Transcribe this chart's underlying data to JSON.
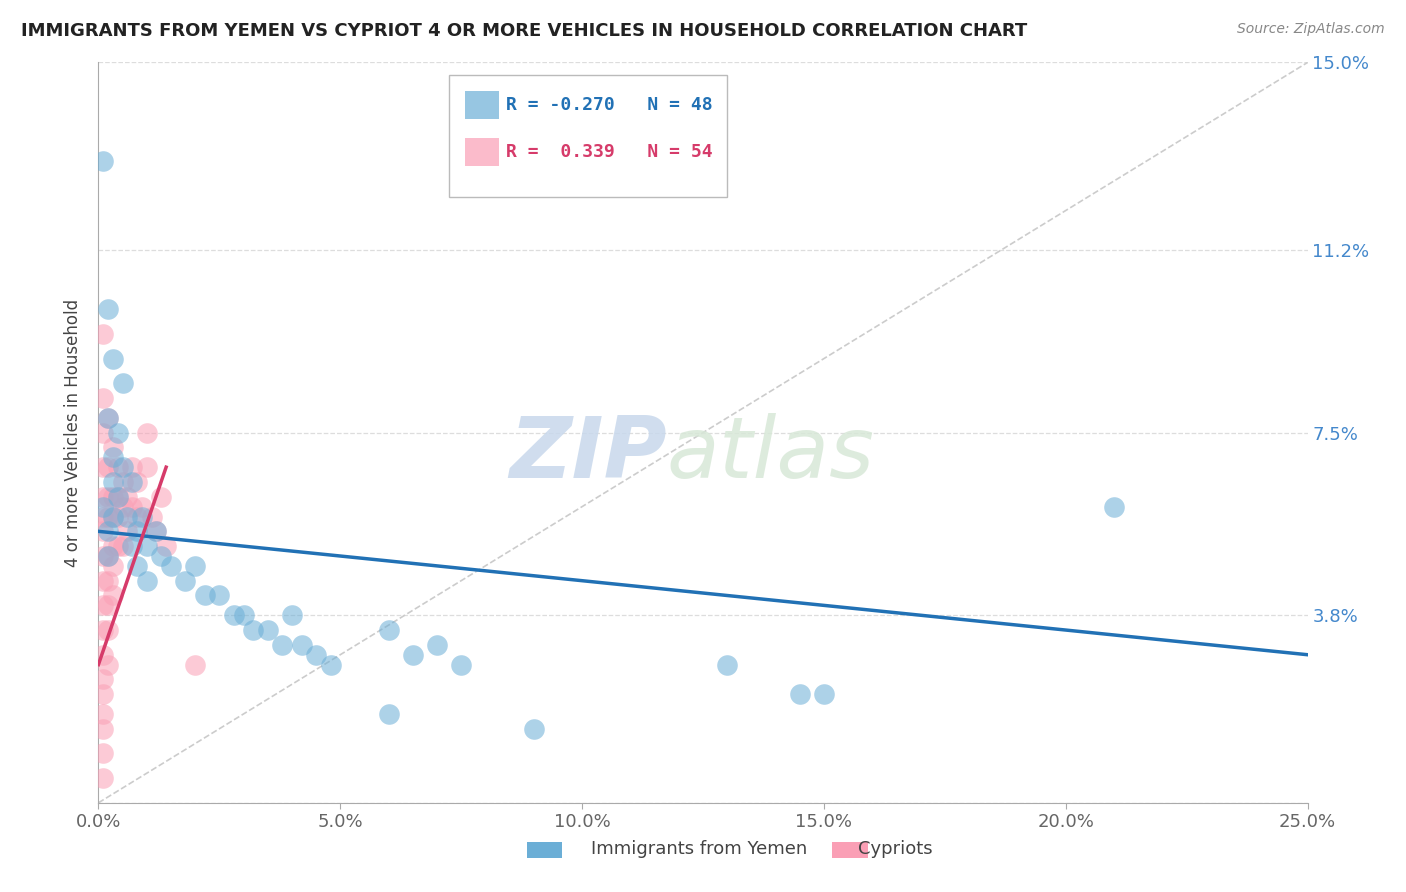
{
  "title": "IMMIGRANTS FROM YEMEN VS CYPRIOT 4 OR MORE VEHICLES IN HOUSEHOLD CORRELATION CHART",
  "source": "Source: ZipAtlas.com",
  "ylabel": "4 or more Vehicles in Household",
  "xmin": 0.0,
  "xmax": 0.25,
  "ymin": 0.0,
  "ymax": 0.15,
  "xticks": [
    0.0,
    0.05,
    0.1,
    0.15,
    0.2,
    0.25
  ],
  "xticklabels": [
    "0.0%",
    "5.0%",
    "10.0%",
    "15.0%",
    "20.0%",
    "25.0%"
  ],
  "ytick_positions": [
    0.0,
    0.038,
    0.075,
    0.112,
    0.15
  ],
  "ytick_labels": [
    "",
    "3.8%",
    "7.5%",
    "11.2%",
    "15.0%"
  ],
  "legend_r1": "R = -0.270",
  "legend_n1": "N = 48",
  "legend_r2": "R =  0.339",
  "legend_n2": "N = 54",
  "color_blue": "#6baed6",
  "color_pink": "#fa9fb5",
  "line_color_blue": "#2171b5",
  "line_color_pink": "#d63b6a",
  "watermark_zip": "ZIP",
  "watermark_atlas": "atlas",
  "blue_scatter": [
    [
      0.001,
      0.13
    ],
    [
      0.002,
      0.1
    ],
    [
      0.002,
      0.078
    ],
    [
      0.003,
      0.09
    ],
    [
      0.003,
      0.07
    ],
    [
      0.004,
      0.075
    ],
    [
      0.005,
      0.085
    ],
    [
      0.001,
      0.06
    ],
    [
      0.002,
      0.055
    ],
    [
      0.002,
      0.05
    ],
    [
      0.003,
      0.065
    ],
    [
      0.003,
      0.058
    ],
    [
      0.004,
      0.062
    ],
    [
      0.005,
      0.068
    ],
    [
      0.006,
      0.058
    ],
    [
      0.007,
      0.065
    ],
    [
      0.007,
      0.052
    ],
    [
      0.008,
      0.055
    ],
    [
      0.008,
      0.048
    ],
    [
      0.009,
      0.058
    ],
    [
      0.01,
      0.052
    ],
    [
      0.01,
      0.045
    ],
    [
      0.012,
      0.055
    ],
    [
      0.013,
      0.05
    ],
    [
      0.015,
      0.048
    ],
    [
      0.018,
      0.045
    ],
    [
      0.02,
      0.048
    ],
    [
      0.022,
      0.042
    ],
    [
      0.025,
      0.042
    ],
    [
      0.028,
      0.038
    ],
    [
      0.03,
      0.038
    ],
    [
      0.032,
      0.035
    ],
    [
      0.035,
      0.035
    ],
    [
      0.038,
      0.032
    ],
    [
      0.04,
      0.038
    ],
    [
      0.042,
      0.032
    ],
    [
      0.045,
      0.03
    ],
    [
      0.048,
      0.028
    ],
    [
      0.06,
      0.035
    ],
    [
      0.065,
      0.03
    ],
    [
      0.07,
      0.032
    ],
    [
      0.075,
      0.028
    ],
    [
      0.13,
      0.028
    ],
    [
      0.145,
      0.022
    ],
    [
      0.15,
      0.022
    ],
    [
      0.21,
      0.06
    ],
    [
      0.06,
      0.018
    ],
    [
      0.09,
      0.015
    ]
  ],
  "pink_scatter": [
    [
      0.001,
      0.095
    ],
    [
      0.001,
      0.082
    ],
    [
      0.001,
      0.075
    ],
    [
      0.001,
      0.068
    ],
    [
      0.001,
      0.062
    ],
    [
      0.001,
      0.058
    ],
    [
      0.001,
      0.055
    ],
    [
      0.001,
      0.05
    ],
    [
      0.001,
      0.045
    ],
    [
      0.001,
      0.04
    ],
    [
      0.001,
      0.035
    ],
    [
      0.001,
      0.03
    ],
    [
      0.001,
      0.025
    ],
    [
      0.001,
      0.022
    ],
    [
      0.001,
      0.018
    ],
    [
      0.001,
      0.015
    ],
    [
      0.001,
      0.01
    ],
    [
      0.001,
      0.005
    ],
    [
      0.002,
      0.078
    ],
    [
      0.002,
      0.068
    ],
    [
      0.002,
      0.062
    ],
    [
      0.002,
      0.058
    ],
    [
      0.002,
      0.05
    ],
    [
      0.002,
      0.045
    ],
    [
      0.002,
      0.04
    ],
    [
      0.002,
      0.035
    ],
    [
      0.002,
      0.028
    ],
    [
      0.003,
      0.072
    ],
    [
      0.003,
      0.062
    ],
    [
      0.003,
      0.058
    ],
    [
      0.003,
      0.052
    ],
    [
      0.003,
      0.048
    ],
    [
      0.003,
      0.042
    ],
    [
      0.004,
      0.068
    ],
    [
      0.004,
      0.062
    ],
    [
      0.004,
      0.058
    ],
    [
      0.004,
      0.052
    ],
    [
      0.005,
      0.065
    ],
    [
      0.005,
      0.06
    ],
    [
      0.005,
      0.052
    ],
    [
      0.006,
      0.062
    ],
    [
      0.006,
      0.055
    ],
    [
      0.007,
      0.068
    ],
    [
      0.007,
      0.06
    ],
    [
      0.008,
      0.065
    ],
    [
      0.008,
      0.058
    ],
    [
      0.009,
      0.06
    ],
    [
      0.01,
      0.075
    ],
    [
      0.01,
      0.068
    ],
    [
      0.011,
      0.058
    ],
    [
      0.012,
      0.055
    ],
    [
      0.013,
      0.062
    ],
    [
      0.014,
      0.052
    ],
    [
      0.02,
      0.028
    ]
  ],
  "blue_line_x": [
    0.0,
    0.25
  ],
  "blue_line_y": [
    0.055,
    0.03
  ],
  "pink_line_x": [
    0.0,
    0.014
  ],
  "pink_line_y": [
    0.028,
    0.068
  ]
}
